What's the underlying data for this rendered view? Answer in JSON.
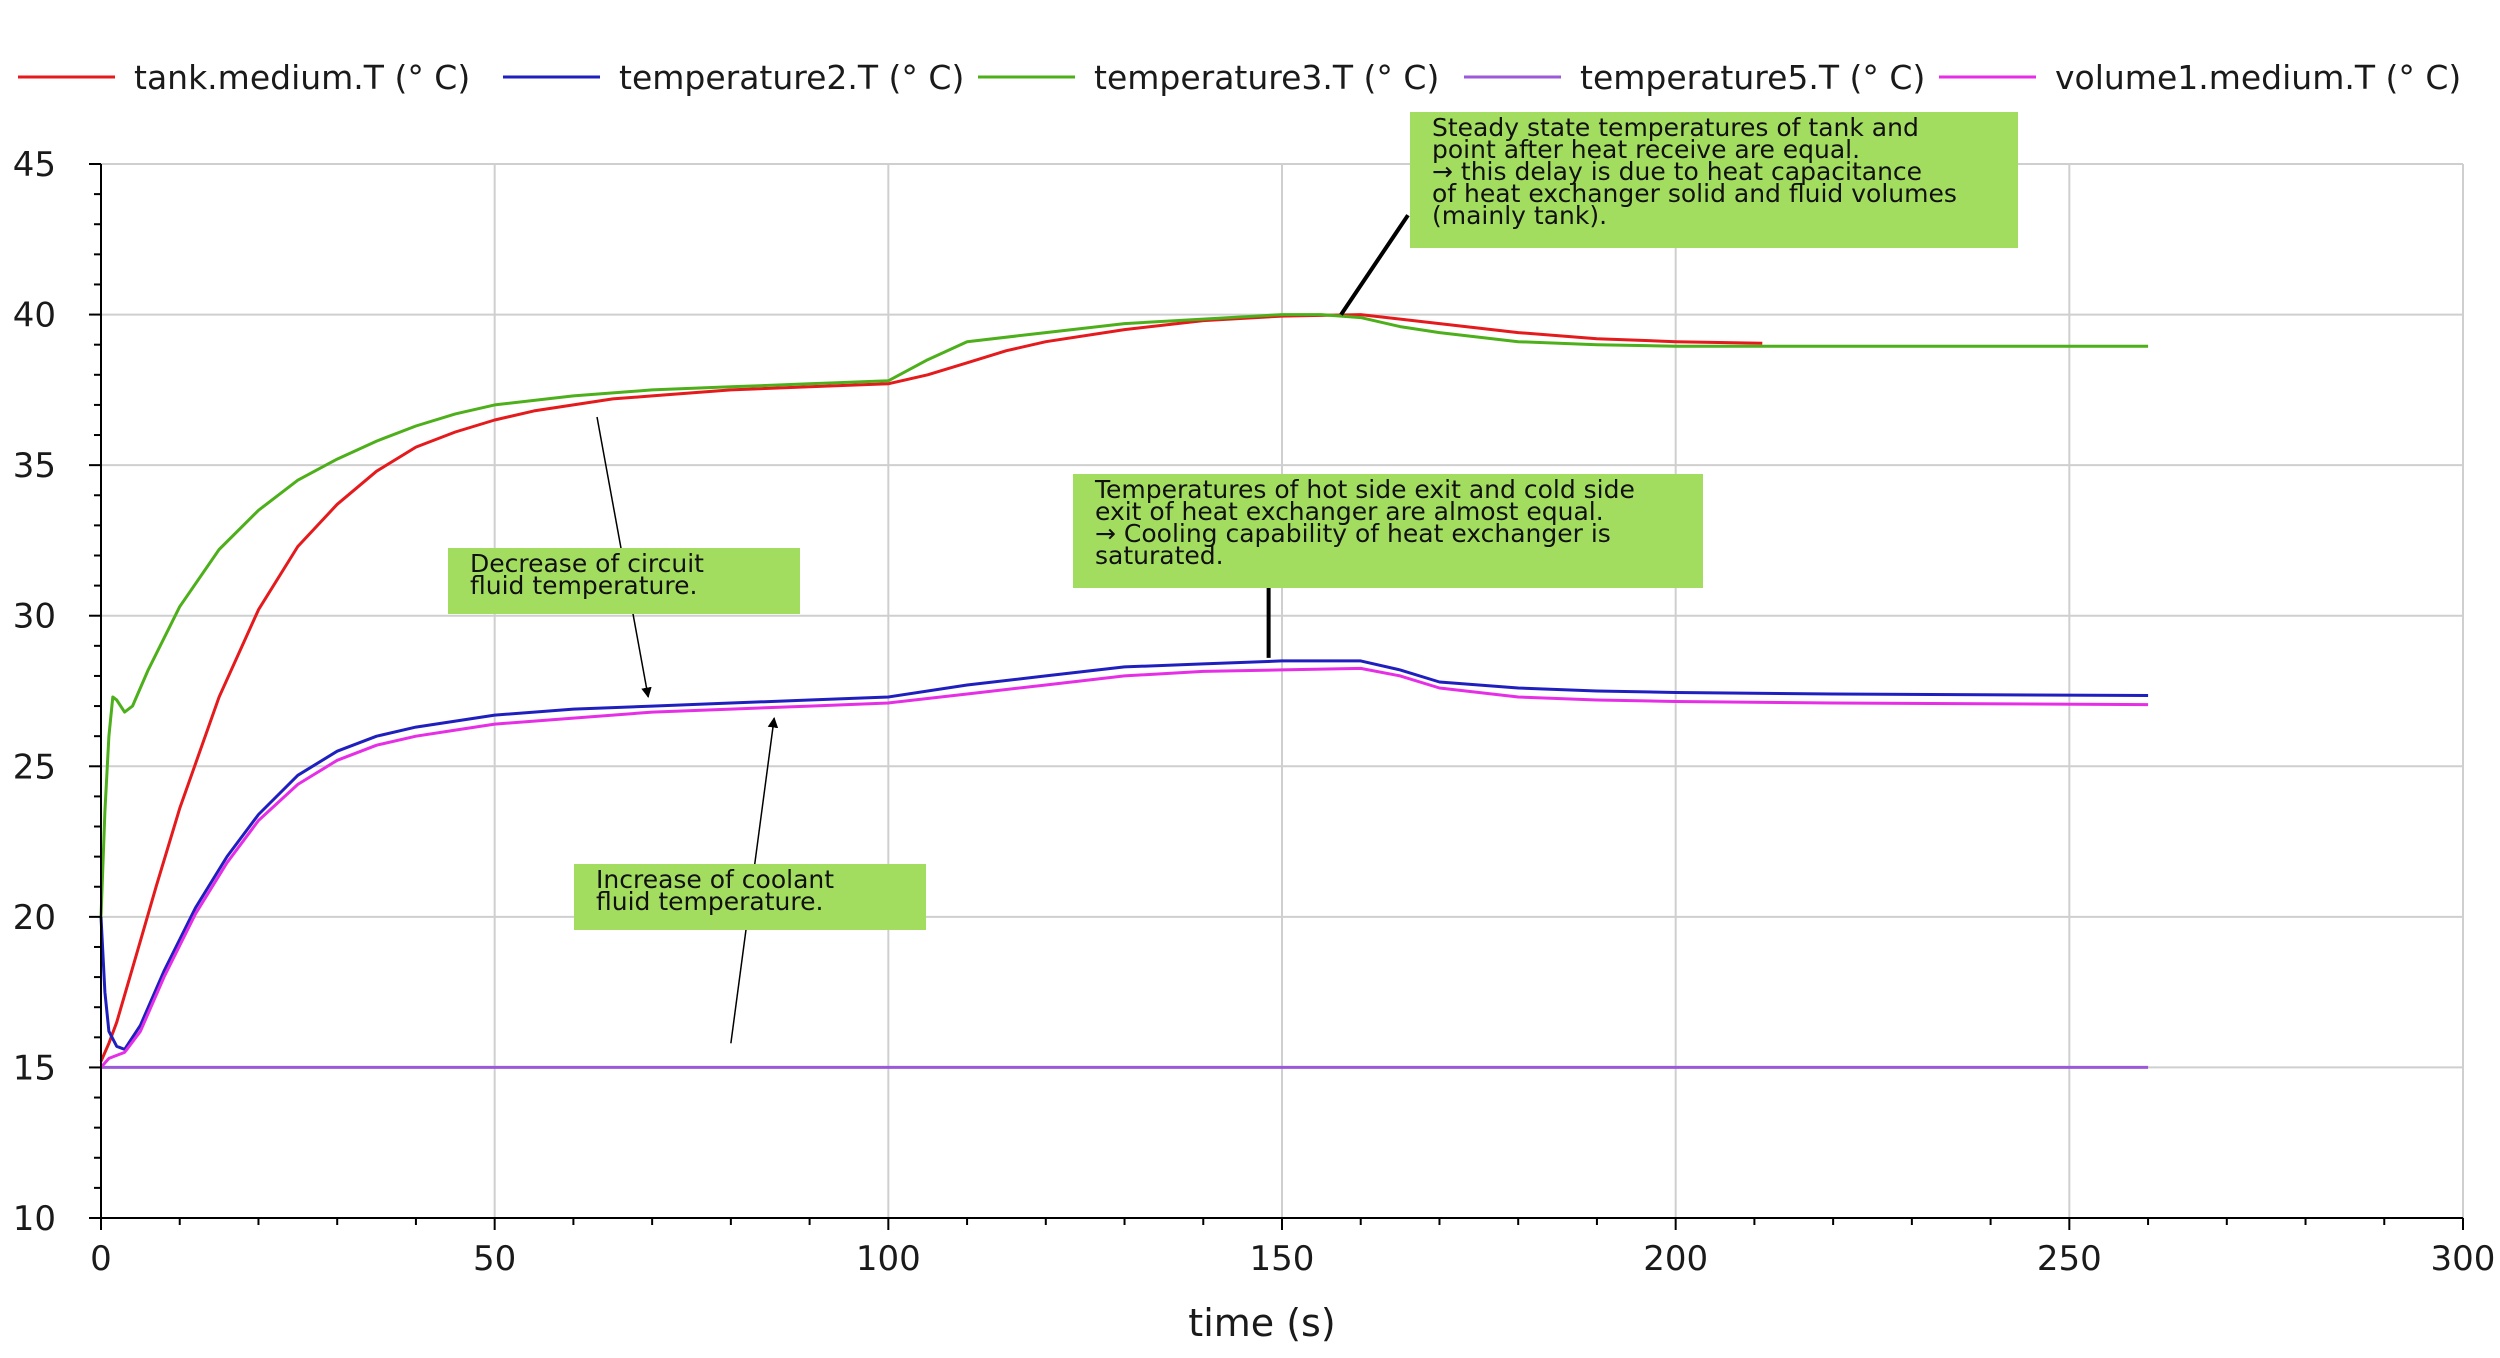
{
  "chart_data": {
    "type": "line",
    "title": "",
    "xlabel": "time (s)",
    "ylabel": "",
    "xlim": [
      0,
      300
    ],
    "ylim": [
      10,
      45
    ],
    "xticks": [
      0,
      50,
      100,
      150,
      200,
      250,
      300
    ],
    "yticks": [
      10,
      15,
      20,
      25,
      30,
      35,
      40,
      45
    ],
    "grid": true,
    "legend_position": "top",
    "series": [
      {
        "name": "tank.medium.T (° C)",
        "color": "#e41a1c",
        "points": [
          [
            0,
            15.2
          ],
          [
            1,
            15.8
          ],
          [
            2,
            16.5
          ],
          [
            3,
            17.4
          ],
          [
            5,
            19.2
          ],
          [
            7,
            21.0
          ],
          [
            10,
            23.6
          ],
          [
            15,
            27.3
          ],
          [
            20,
            30.2
          ],
          [
            25,
            32.3
          ],
          [
            30,
            33.7
          ],
          [
            35,
            34.8
          ],
          [
            40,
            35.6
          ],
          [
            45,
            36.1
          ],
          [
            50,
            36.5
          ],
          [
            55,
            36.8
          ],
          [
            60,
            37.0
          ],
          [
            65,
            37.2
          ],
          [
            70,
            37.3
          ],
          [
            80,
            37.5
          ],
          [
            90,
            37.6
          ],
          [
            100,
            37.7
          ],
          [
            105,
            38.0
          ],
          [
            110,
            38.4
          ],
          [
            115,
            38.8
          ],
          [
            120,
            39.1
          ],
          [
            130,
            39.5
          ],
          [
            140,
            39.8
          ],
          [
            150,
            39.95
          ],
          [
            160,
            40.0
          ],
          [
            170,
            39.7
          ],
          [
            180,
            39.4
          ],
          [
            190,
            39.2
          ],
          [
            200,
            39.1
          ],
          [
            211,
            39.05
          ]
        ]
      },
      {
        "name": "temperature2.T (° C)",
        "color": "#1f1fbf",
        "points": [
          [
            0,
            20.0
          ],
          [
            0.5,
            17.5
          ],
          [
            1,
            16.2
          ],
          [
            2,
            15.7
          ],
          [
            3,
            15.6
          ],
          [
            5,
            16.4
          ],
          [
            8,
            18.2
          ],
          [
            12,
            20.3
          ],
          [
            16,
            22.0
          ],
          [
            20,
            23.4
          ],
          [
            25,
            24.7
          ],
          [
            30,
            25.5
          ],
          [
            35,
            26.0
          ],
          [
            40,
            26.3
          ],
          [
            45,
            26.5
          ],
          [
            50,
            26.7
          ],
          [
            60,
            26.9
          ],
          [
            70,
            27.0
          ],
          [
            80,
            27.1
          ],
          [
            90,
            27.2
          ],
          [
            100,
            27.3
          ],
          [
            110,
            27.7
          ],
          [
            120,
            28.0
          ],
          [
            130,
            28.3
          ],
          [
            140,
            28.4
          ],
          [
            150,
            28.5
          ],
          [
            160,
            28.5
          ],
          [
            165,
            28.2
          ],
          [
            170,
            27.8
          ],
          [
            180,
            27.6
          ],
          [
            190,
            27.5
          ],
          [
            200,
            27.45
          ],
          [
            220,
            27.4
          ],
          [
            260,
            27.35
          ]
        ]
      },
      {
        "name": "temperature3.T (° C)",
        "color": "#4daf1a",
        "points": [
          [
            0,
            20.0
          ],
          [
            0.5,
            23.5
          ],
          [
            1,
            26.0
          ],
          [
            1.5,
            27.3
          ],
          [
            2,
            27.2
          ],
          [
            3,
            26.8
          ],
          [
            4,
            27.0
          ],
          [
            6,
            28.2
          ],
          [
            10,
            30.3
          ],
          [
            15,
            32.2
          ],
          [
            20,
            33.5
          ],
          [
            25,
            34.5
          ],
          [
            30,
            35.2
          ],
          [
            35,
            35.8
          ],
          [
            40,
            36.3
          ],
          [
            45,
            36.7
          ],
          [
            50,
            37.0
          ],
          [
            60,
            37.3
          ],
          [
            70,
            37.5
          ],
          [
            80,
            37.6
          ],
          [
            90,
            37.7
          ],
          [
            100,
            37.8
          ],
          [
            105,
            38.5
          ],
          [
            110,
            39.1
          ],
          [
            120,
            39.4
          ],
          [
            130,
            39.7
          ],
          [
            140,
            39.85
          ],
          [
            150,
            40.0
          ],
          [
            155,
            40.0
          ],
          [
            160,
            39.9
          ],
          [
            165,
            39.6
          ],
          [
            170,
            39.4
          ],
          [
            180,
            39.1
          ],
          [
            190,
            39.0
          ],
          [
            200,
            38.95
          ],
          [
            260,
            38.95
          ]
        ]
      },
      {
        "name": "temperature5.T (° C)",
        "color": "#9b59d9",
        "points": [
          [
            0,
            15.0
          ],
          [
            260,
            15.0
          ]
        ]
      },
      {
        "name": "volume1.medium.T (° C)",
        "color": "#e62ee6",
        "points": [
          [
            0,
            15.0
          ],
          [
            1,
            15.3
          ],
          [
            2,
            15.4
          ],
          [
            3,
            15.5
          ],
          [
            5,
            16.2
          ],
          [
            8,
            18.0
          ],
          [
            12,
            20.1
          ],
          [
            16,
            21.8
          ],
          [
            20,
            23.2
          ],
          [
            25,
            24.4
          ],
          [
            30,
            25.2
          ],
          [
            35,
            25.7
          ],
          [
            40,
            26.0
          ],
          [
            45,
            26.2
          ],
          [
            50,
            26.4
          ],
          [
            60,
            26.6
          ],
          [
            70,
            26.8
          ],
          [
            80,
            26.9
          ],
          [
            90,
            27.0
          ],
          [
            100,
            27.1
          ],
          [
            110,
            27.4
          ],
          [
            120,
            27.7
          ],
          [
            130,
            28.0
          ],
          [
            140,
            28.15
          ],
          [
            150,
            28.2
          ],
          [
            160,
            28.25
          ],
          [
            165,
            28.0
          ],
          [
            170,
            27.6
          ],
          [
            180,
            27.3
          ],
          [
            190,
            27.2
          ],
          [
            200,
            27.15
          ],
          [
            220,
            27.1
          ],
          [
            260,
            27.05
          ]
        ]
      }
    ],
    "annotations": [
      {
        "id": "steady-state",
        "lines": [
          "Steady state temperatures of tank and",
          "point after heat receive are equal.",
          "→ this delay is due to heat capacitance",
          "of heat exchanger solid and fluid volumes",
          "(mainly tank)."
        ],
        "box_color": "#a3dd5f",
        "style": "thick",
        "pointer": {
          "from": [
            166,
            43.3
          ],
          "to": [
            157.5,
            40.0
          ]
        }
      },
      {
        "id": "saturated",
        "lines": [
          "Temperatures of hot side exit and cold side",
          "exit of heat exchanger are almost equal.",
          "→ Cooling capability of heat exchanger is",
          "saturated."
        ],
        "box_color": "#a3dd5f",
        "style": "thick",
        "pointer": {
          "from": [
            148.3,
            31.0
          ],
          "to": [
            148.3,
            28.6
          ]
        }
      },
      {
        "id": "decrease",
        "lines": [
          "Decrease of circuit",
          "fluid temperature."
        ],
        "box_color": "#a3dd5f",
        "style": "arrow",
        "pointer": {
          "from": [
            63,
            36.6
          ],
          "to": [
            69.5,
            27.3
          ]
        }
      },
      {
        "id": "increase",
        "lines": [
          "Increase of coolant",
          "fluid temperature."
        ],
        "box_color": "#a3dd5f",
        "style": "arrow",
        "pointer": {
          "from": [
            80,
            15.8
          ],
          "to": [
            85.5,
            26.6
          ]
        }
      }
    ]
  }
}
